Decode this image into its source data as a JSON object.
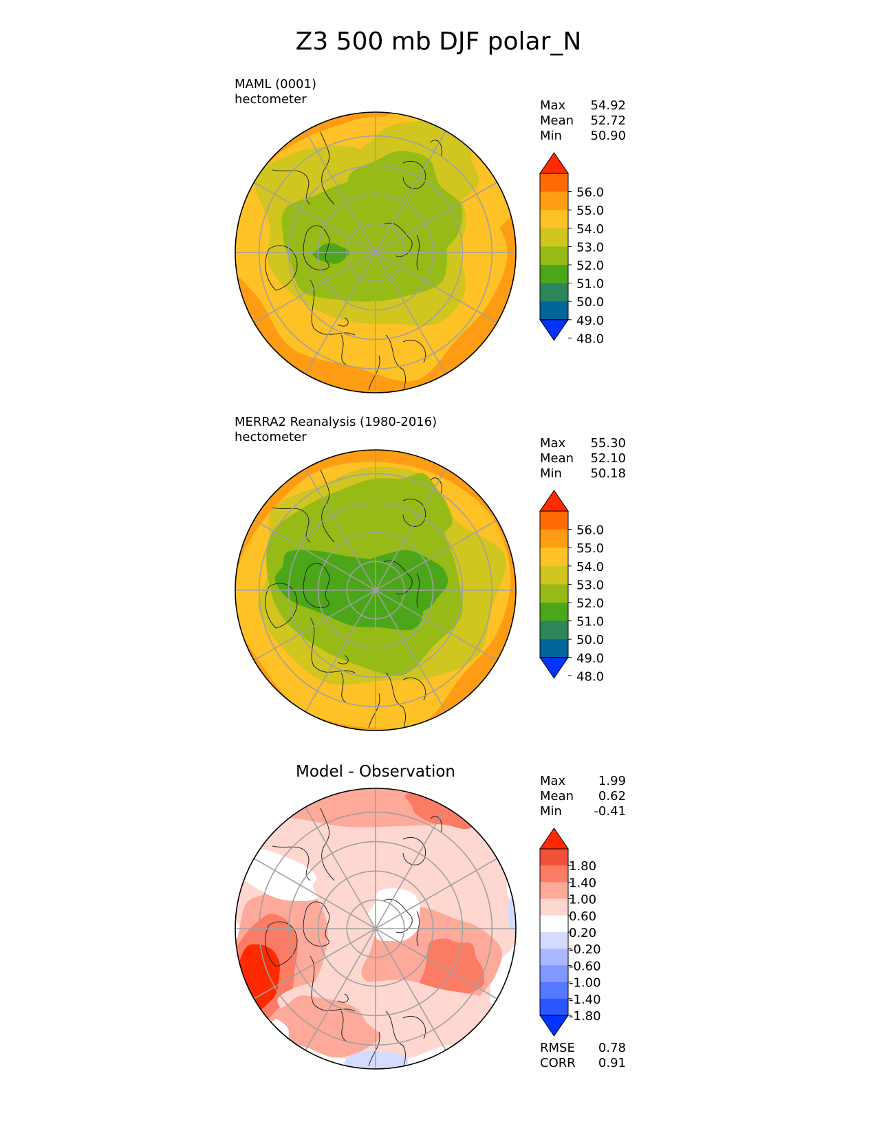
{
  "title": "Z3 500 mb DJF polar_N",
  "colors": {
    "abs_levels": [
      "#0033ff",
      "#006699",
      "#2d8659",
      "#4ca619",
      "#96bb17",
      "#d1c520",
      "#fec226",
      "#fe9d14",
      "#fe6a04",
      "#ff2a00"
    ],
    "diff_levels": [
      "#0033ff",
      "#2a56ff",
      "#5579ff",
      "#8098ff",
      "#aab8ff",
      "#d4dbff",
      "#ffffff",
      "#fed8d0",
      "#fdaa9a",
      "#fc7b64",
      "#f3503a",
      "#ff2a00"
    ],
    "grid": "#a0a0a0",
    "coast": "#222222"
  },
  "chart_data": [
    {
      "type": "heatmap",
      "projection": "north polar stereographic",
      "label_line1": "MAML (0001)",
      "label_line2": "hectometer",
      "stats": [
        {
          "label": "Max",
          "value": "54.92"
        },
        {
          "label": "Mean",
          "value": "52.72"
        },
        {
          "label": "Min",
          "value": "50.90"
        }
      ],
      "colorbar_ticks": [
        "56.0",
        "55.0",
        "54.0",
        "53.0",
        "52.0",
        "51.0",
        "50.0",
        "49.0",
        "48.0"
      ],
      "contour_levels": [
        48,
        49,
        50,
        51,
        52,
        53,
        54,
        55,
        56
      ]
    },
    {
      "type": "heatmap",
      "projection": "north polar stereographic",
      "label_line1": "MERRA2 Reanalysis (1980-2016)",
      "label_line2": "hectometer",
      "stats": [
        {
          "label": "Max",
          "value": "55.30"
        },
        {
          "label": "Mean",
          "value": "52.10"
        },
        {
          "label": "Min",
          "value": "50.18"
        }
      ],
      "colorbar_ticks": [
        "56.0",
        "55.0",
        "54.0",
        "53.0",
        "52.0",
        "51.0",
        "50.0",
        "49.0",
        "48.0"
      ],
      "contour_levels": [
        48,
        49,
        50,
        51,
        52,
        53,
        54,
        55,
        56
      ]
    },
    {
      "type": "heatmap",
      "projection": "north polar stereographic",
      "title": "Model - Observation",
      "stats": [
        {
          "label": "Max",
          "value": "1.99"
        },
        {
          "label": "Mean",
          "value": "0.62"
        },
        {
          "label": "Min",
          "value": "-0.41"
        }
      ],
      "colorbar_ticks": [
        "1.80",
        "1.40",
        "1.00",
        "0.60",
        "0.20",
        "-0.20",
        "-0.60",
        "-1.00",
        "-1.40",
        "-1.80"
      ],
      "contour_levels": [
        -1.8,
        -1.4,
        -1.0,
        -0.6,
        -0.2,
        0.2,
        0.6,
        1.0,
        1.4,
        1.8
      ],
      "metrics": [
        {
          "label": "RMSE",
          "value": "0.78"
        },
        {
          "label": "CORR",
          "value": "0.91"
        }
      ]
    }
  ]
}
